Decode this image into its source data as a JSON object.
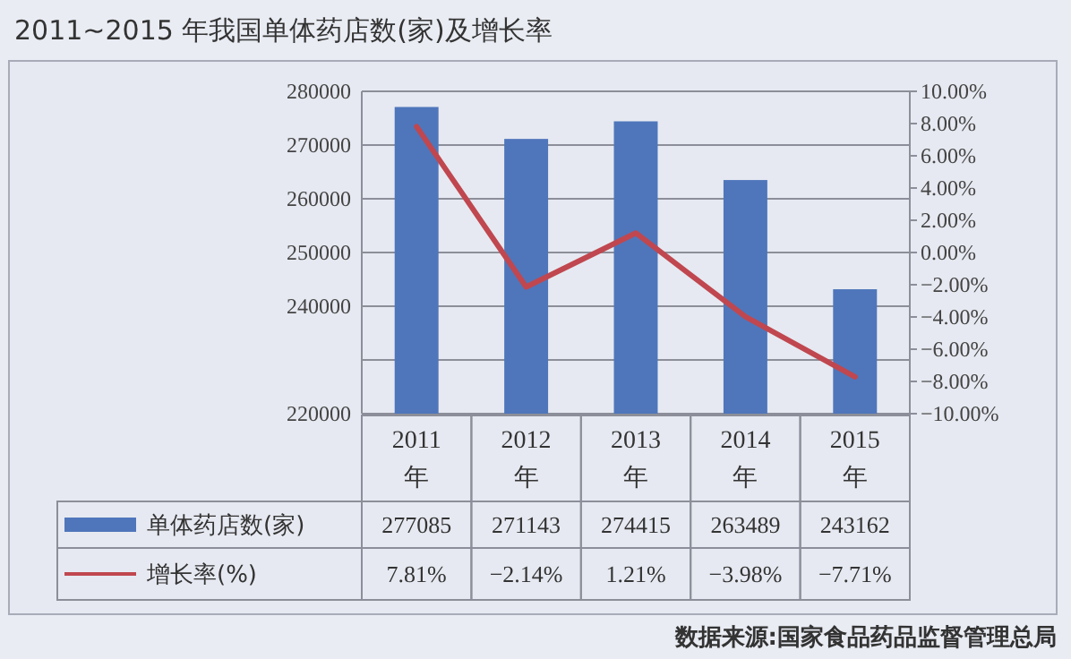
{
  "chart_data": {
    "type": "bar",
    "title": "2011~2015 年我国单体药店数(家)及增长率",
    "categories": [
      "2011年",
      "2012年",
      "2013年",
      "2014年",
      "2015年"
    ],
    "series": [
      {
        "name": "单体药店数(家)",
        "color": "#4f76bb",
        "values": [
          277085,
          271143,
          274415,
          263489,
          243162
        ],
        "value_labels": [
          "277085",
          "271143",
          "274415",
          "263489",
          "243162"
        ]
      },
      {
        "name": "增长率(%)",
        "type": "line",
        "axis": "y2",
        "color": "#c0474f",
        "values": [
          7.81,
          -2.14,
          1.21,
          -3.98,
          -7.71
        ],
        "value_labels": [
          "7.81%",
          "−2.14%",
          "1.21%",
          "−3.98%",
          "−7.71%"
        ]
      }
    ],
    "ylim": [
      220000,
      280000
    ],
    "yticks": [
      280000,
      270000,
      260000,
      250000,
      240000,
      {
        "value": 230000,
        "label": null
      },
      220000
    ],
    "y2lim": [
      -10,
      10
    ],
    "y2ticks": [
      {
        "value": 10,
        "label": "10.00%"
      },
      {
        "value": 8,
        "label": "8.00%"
      },
      {
        "value": 6,
        "label": "6.00%"
      },
      {
        "value": 4,
        "label": "4.00%"
      },
      {
        "value": 2,
        "label": "2.00%"
      },
      {
        "value": 0,
        "label": "0.00%"
      },
      {
        "value": -2,
        "label": "−2.00%"
      },
      {
        "value": -4,
        "label": "−4.00%"
      },
      {
        "value": -6,
        "label": "−6.00%"
      },
      {
        "value": -8,
        "label": "−8.00%"
      },
      {
        "value": -10,
        "label": "−10.00%"
      }
    ],
    "grid": "y",
    "legend": "bottom",
    "marker": "none",
    "line_style": "solid",
    "annotations": [
      "数据来源:国家食品药品监督管理总局"
    ]
  }
}
